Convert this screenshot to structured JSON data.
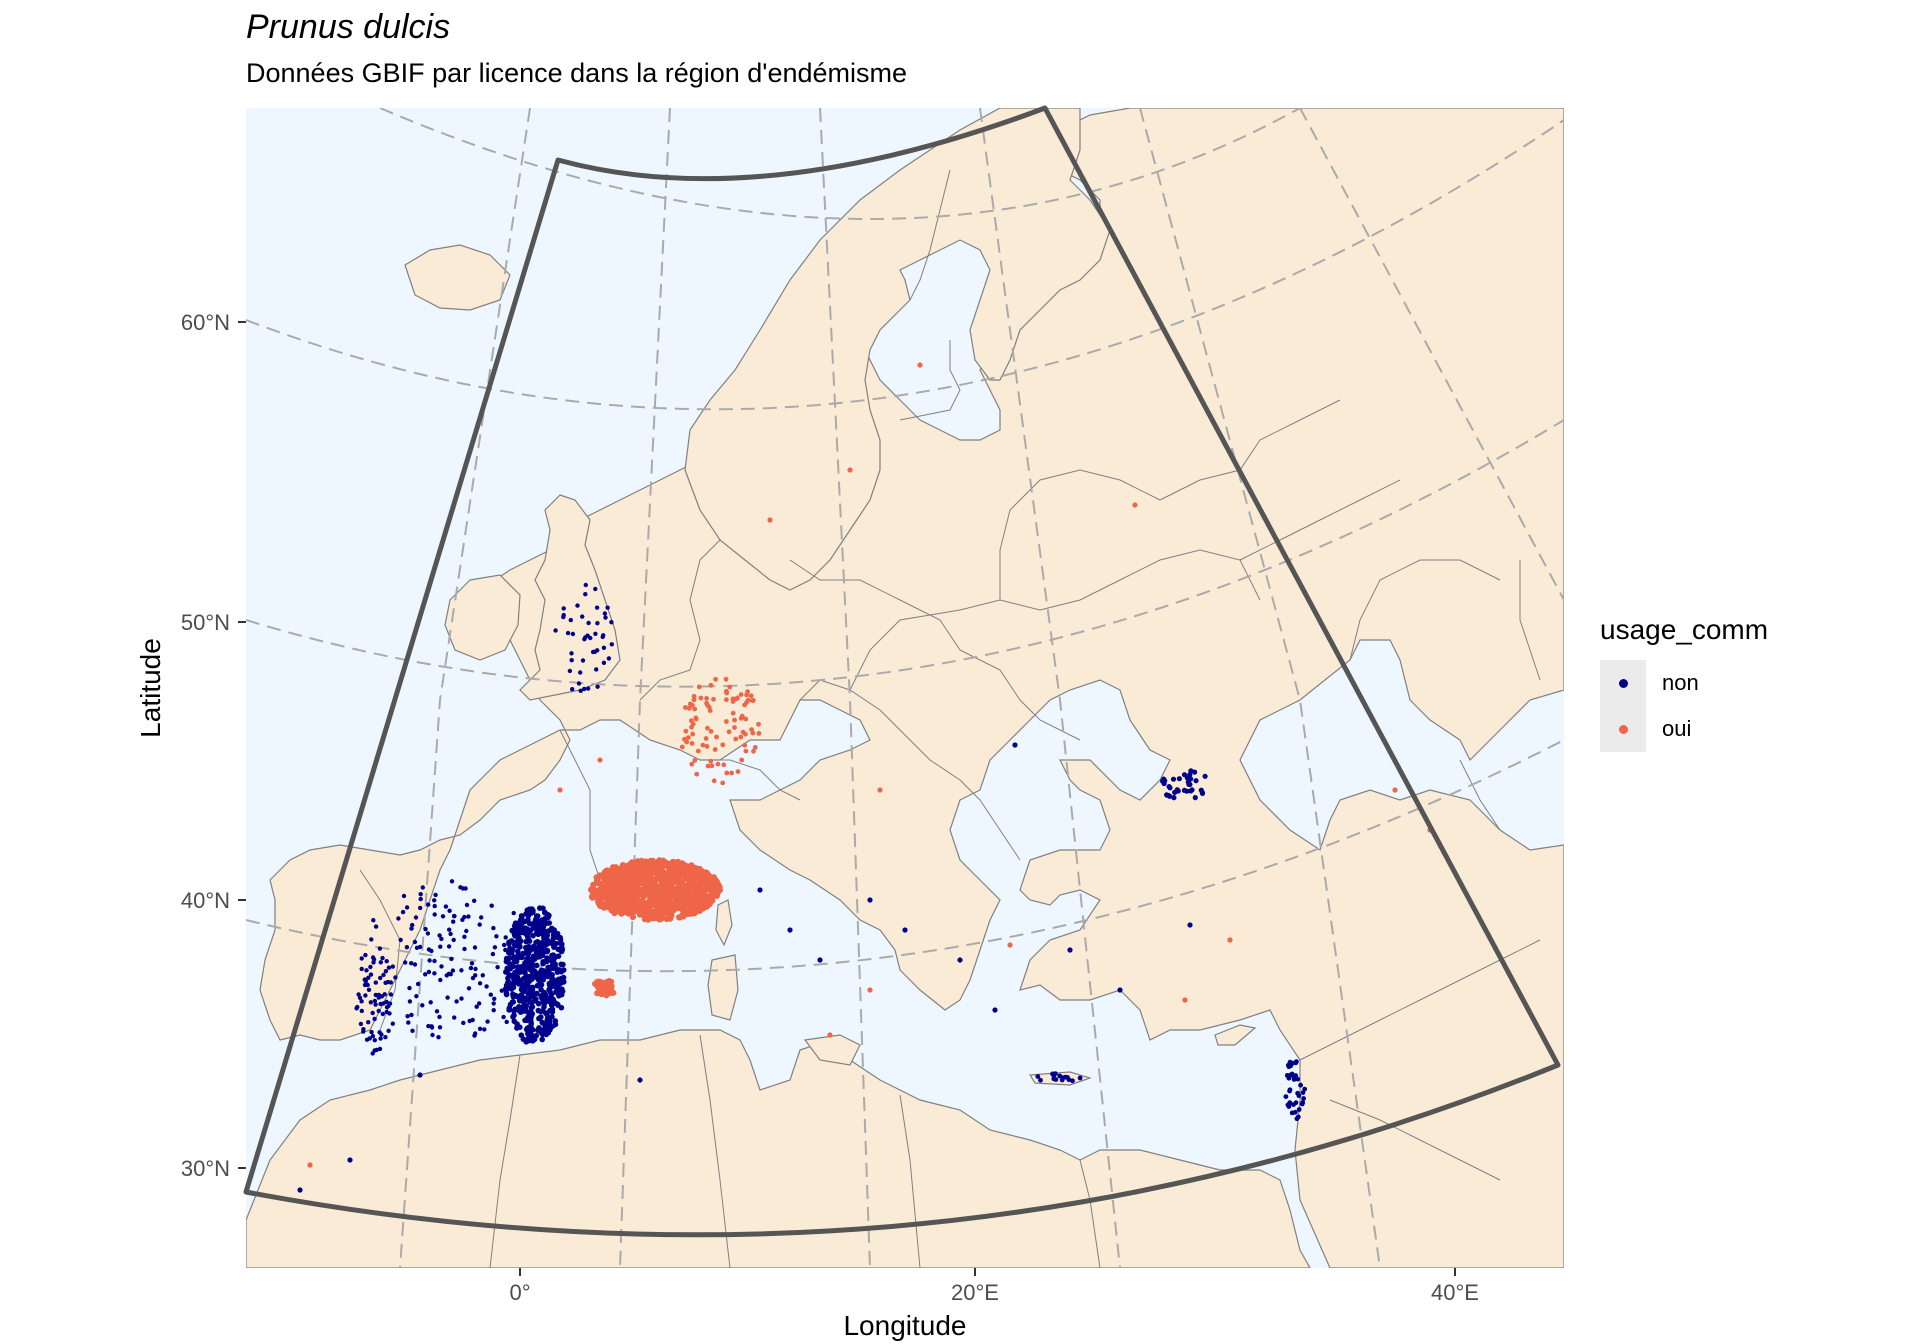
{
  "title": "Prunus dulcis",
  "subtitle": "Données GBIF par licence dans la région d'endémisme",
  "axes": {
    "xlabel": "Longitude",
    "ylabel": "Latitude",
    "x_ticks": [
      "0°",
      "20°E",
      "40°E"
    ],
    "y_ticks": [
      "30°N",
      "40°N",
      "50°N",
      "60°N"
    ],
    "graticule": "dashed grey"
  },
  "legend": {
    "title": "usage_comm",
    "placement": "right",
    "entries": [
      {
        "label": "non",
        "color": "#00008b"
      },
      {
        "label": "oui",
        "color": "#ef6548"
      }
    ]
  },
  "colors": {
    "land": "#faebd7",
    "sea": "#eef7ff",
    "borders": "#808080",
    "region_outline": "#555555",
    "graticule": "#aaaaaa"
  },
  "map": {
    "region": "endemic region outline (sector)",
    "clusters": [
      {
        "name": "southern-france",
        "series": "oui"
      },
      {
        "name": "eastern-spain",
        "series": "non"
      },
      {
        "name": "central-spain",
        "series": "non"
      },
      {
        "name": "portugal",
        "series": "non"
      },
      {
        "name": "england",
        "series": "non"
      },
      {
        "name": "germany",
        "series": "oui"
      },
      {
        "name": "balearic-islands",
        "series": "oui"
      },
      {
        "name": "crimea",
        "series": "non"
      },
      {
        "name": "israel",
        "series": "non"
      },
      {
        "name": "crete",
        "series": "non"
      }
    ]
  }
}
